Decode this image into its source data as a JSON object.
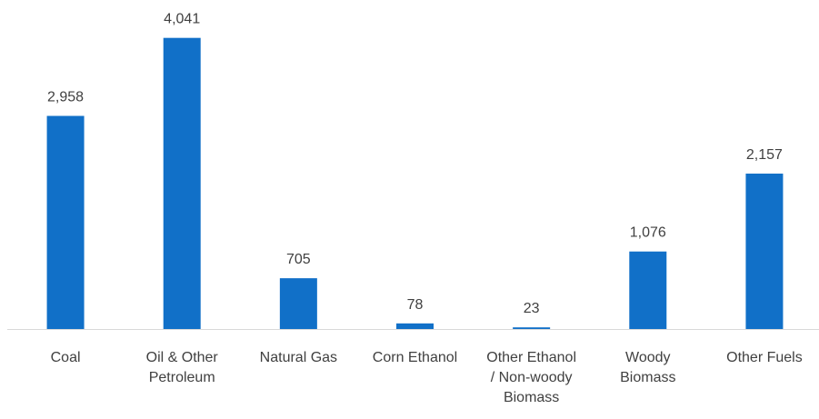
{
  "chart_data": {
    "type": "bar",
    "title": "",
    "xlabel": "",
    "ylabel": "",
    "categories": [
      "Coal",
      "Oil & Other Petroleum",
      "Natural Gas",
      "Corn Ethanol",
      "Other Ethanol / Non-woody Biomass",
      "Woody Biomass",
      "Other Fuels"
    ],
    "category_lines": [
      [
        "Coal"
      ],
      [
        "Oil & Other",
        "Petroleum"
      ],
      [
        "Natural Gas"
      ],
      [
        "Corn Ethanol"
      ],
      [
        "Other Ethanol",
        "/ Non-woody",
        "Biomass"
      ],
      [
        "Woody",
        "Biomass"
      ],
      [
        "Other Fuels"
      ]
    ],
    "values": [
      2958,
      4041,
      705,
      78,
      23,
      1076,
      2157
    ],
    "value_labels": [
      "2,958",
      "4,041",
      "705",
      "78",
      "23",
      "1,076",
      "2,157"
    ],
    "ylim": [
      0,
      4100
    ],
    "grid": false,
    "legend": "none",
    "colors": {
      "bar": "#1170c8",
      "axis": "#d9d9d9",
      "text": "#404040"
    }
  }
}
